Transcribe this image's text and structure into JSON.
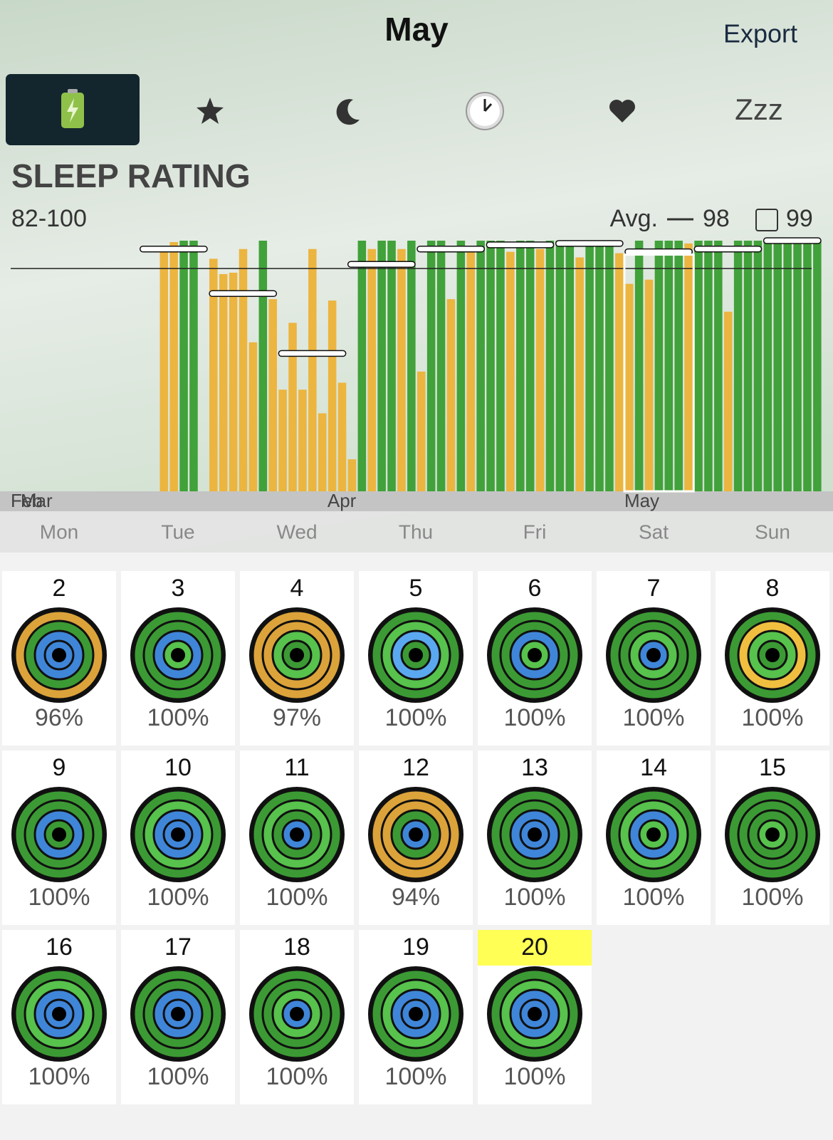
{
  "header": {
    "title": "May",
    "export": "Export"
  },
  "tabs": {
    "zzz": "Zzz"
  },
  "rating": {
    "title": "SLEEP RATING",
    "range": "82-100"
  },
  "chart": {
    "type": "bar",
    "categories": [
      "Feb",
      "Mar",
      null,
      null,
      null,
      null,
      null,
      null,
      null,
      null,
      null,
      null,
      null,
      null,
      null,
      null,
      null,
      null,
      null,
      null,
      null,
      null,
      null,
      null,
      null,
      null,
      null,
      null,
      null,
      null,
      null,
      null,
      "Apr",
      null,
      null,
      null,
      null,
      null,
      null,
      null,
      null,
      null,
      null,
      null,
      null,
      null,
      null,
      null,
      null,
      null,
      null,
      null,
      null,
      null,
      null,
      null,
      null,
      null,
      null,
      null,
      null,
      null,
      "May",
      null,
      null,
      null,
      null,
      null,
      null,
      null,
      null,
      null,
      null,
      null,
      null,
      null,
      null,
      null,
      null,
      null,
      null,
      null
    ],
    "values": [
      null,
      null,
      null,
      null,
      null,
      null,
      null,
      null,
      null,
      null,
      null,
      null,
      null,
      null,
      null,
      99.5,
      99.9,
      100,
      100,
      null,
      98.7,
      97.6,
      97.7,
      99.4,
      92.7,
      100,
      95.8,
      89.3,
      94.1,
      89.3,
      99.4,
      87.6,
      95.7,
      89.8,
      84.3,
      100,
      99.4,
      100,
      100,
      99.4,
      100,
      90.6,
      100,
      100,
      95.8,
      100,
      99.4,
      100,
      100,
      100,
      99.2,
      100,
      100,
      99.4,
      100,
      100,
      100,
      98.8,
      100,
      100,
      100,
      99.1,
      96.9,
      100,
      97.2,
      100,
      100,
      100,
      99.8,
      100,
      100,
      100,
      94.9,
      100,
      100,
      100,
      100,
      100,
      100,
      100,
      100,
      100
    ],
    "ylim": [
      82,
      100
    ],
    "colors": {
      "full": "#41a13a",
      "partial": "#ecb53f"
    },
    "week_averages": [
      99.4,
      96.2,
      91.9,
      98.3,
      99.4,
      99.7,
      99.8,
      99.2,
      99.4,
      100
    ],
    "avg": {
      "label": "Avg.",
      "value": 98
    },
    "box": {
      "value": 99
    }
  },
  "weekdays": [
    "Mon",
    "Tue",
    "Wed",
    "Thu",
    "Fri",
    "Sat",
    "Sun"
  ],
  "days": [
    {
      "day": 2,
      "label": "96%",
      "rings": [
        "#dca33a",
        "#3c9a34",
        "#3f86d9",
        "#3f86d9"
      ]
    },
    {
      "day": 3,
      "label": "100%",
      "rings": [
        "#3c9a34",
        "#3c9a34",
        "#3f86d9",
        "#57c24c"
      ]
    },
    {
      "day": 4,
      "label": "97%",
      "rings": [
        "#dca33a",
        "#dca33a",
        "#57c24c",
        "#3c9a34"
      ]
    },
    {
      "day": 5,
      "label": "100%",
      "rings": [
        "#3c9a34",
        "#57c24c",
        "#5aa8f0",
        "#3c9a34"
      ]
    },
    {
      "day": 6,
      "label": "100%",
      "rings": [
        "#3c9a34",
        "#3c9a34",
        "#3f86d9",
        "#57c24c"
      ]
    },
    {
      "day": 7,
      "label": "100%",
      "rings": [
        "#3c9a34",
        "#3c9a34",
        "#57c24c",
        "#3f86d9"
      ]
    },
    {
      "day": 8,
      "label": "100%",
      "rings": [
        "#3c9a34",
        "#f1bf3f",
        "#57c24c",
        "#3c9a34"
      ]
    },
    {
      "day": 9,
      "label": "100%",
      "rings": [
        "#3c9a34",
        "#3c9a34",
        "#3f86d9",
        "#3c9a34"
      ]
    },
    {
      "day": 10,
      "label": "100%",
      "rings": [
        "#3c9a34",
        "#57c24c",
        "#3f86d9",
        "#3f86d9"
      ]
    },
    {
      "day": 11,
      "label": "100%",
      "rings": [
        "#3c9a34",
        "#57c24c",
        "#3c9a34",
        "#3f86d9"
      ]
    },
    {
      "day": 12,
      "label": "94%",
      "rings": [
        "#dca33a",
        "#dca33a",
        "#3c9a34",
        "#3f86d9"
      ]
    },
    {
      "day": 13,
      "label": "100%",
      "rings": [
        "#3c9a34",
        "#3c9a34",
        "#3f86d9",
        "#3f86d9"
      ]
    },
    {
      "day": 14,
      "label": "100%",
      "rings": [
        "#3c9a34",
        "#57c24c",
        "#3f86d9",
        "#57c24c"
      ]
    },
    {
      "day": 15,
      "label": "100%",
      "rings": [
        "#3c9a34",
        "#3c9a34",
        "#3c9a34",
        "#57c24c"
      ]
    },
    {
      "day": 16,
      "label": "100%",
      "rings": [
        "#3c9a34",
        "#57c24c",
        "#3f86d9",
        "#3f86d9"
      ]
    },
    {
      "day": 17,
      "label": "100%",
      "rings": [
        "#3c9a34",
        "#3c9a34",
        "#3f86d9",
        "#3f86d9"
      ]
    },
    {
      "day": 18,
      "label": "100%",
      "rings": [
        "#3c9a34",
        "#3c9a34",
        "#57c24c",
        "#3f86d9"
      ]
    },
    {
      "day": 19,
      "label": "100%",
      "rings": [
        "#3c9a34",
        "#57c24c",
        "#3f86d9",
        "#3f86d9"
      ]
    },
    {
      "day": 20,
      "label": "100%",
      "rings": [
        "#3c9a34",
        "#57c24c",
        "#3f86d9",
        "#3f86d9"
      ]
    }
  ]
}
